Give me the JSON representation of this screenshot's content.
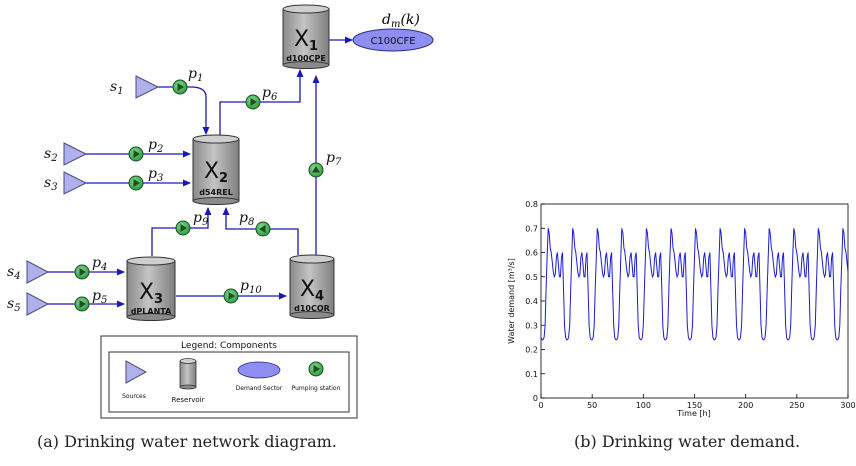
{
  "network": {
    "reservoirs": [
      {
        "id": "x1",
        "name": "X",
        "sub": "1",
        "code": "d100CPE"
      },
      {
        "id": "x2",
        "name": "X",
        "sub": "2",
        "code": "d54REL"
      },
      {
        "id": "x3",
        "name": "X",
        "sub": "3",
        "code": "dPLANTA"
      },
      {
        "id": "x4",
        "name": "X",
        "sub": "4",
        "code": "d10COR"
      }
    ],
    "sources": [
      {
        "id": "s1",
        "name": "s",
        "sub": "1"
      },
      {
        "id": "s2",
        "name": "s",
        "sub": "2"
      },
      {
        "id": "s3",
        "name": "s",
        "sub": "3"
      },
      {
        "id": "s4",
        "name": "s",
        "sub": "4"
      },
      {
        "id": "s5",
        "name": "s",
        "sub": "5"
      }
    ],
    "pumps": [
      {
        "id": "p1",
        "name": "p",
        "sub": "1"
      },
      {
        "id": "p2",
        "name": "p",
        "sub": "2"
      },
      {
        "id": "p3",
        "name": "p",
        "sub": "3"
      },
      {
        "id": "p4",
        "name": "p",
        "sub": "4"
      },
      {
        "id": "p5",
        "name": "p",
        "sub": "5"
      },
      {
        "id": "p6",
        "name": "p",
        "sub": "6"
      },
      {
        "id": "p7",
        "name": "p",
        "sub": "7"
      },
      {
        "id": "p8",
        "name": "p",
        "sub": "8"
      },
      {
        "id": "p9",
        "name": "p",
        "sub": "9"
      },
      {
        "id": "p10",
        "name": "p",
        "sub": "10"
      }
    ],
    "demand": {
      "label": "C100CFE",
      "annotation_main": "d",
      "annotation_sub": "m",
      "annotation_arg": "(k)"
    },
    "legend": {
      "title": "Legend: Components",
      "items": [
        "Sources",
        "Reservoir",
        "Demand Sector",
        "Pumping station"
      ]
    },
    "colors": {
      "pipe": "#1a1ab4",
      "source": "#b0b0ec",
      "pump": "#3aa64a",
      "demand": "#8e8ef0",
      "tank": "#a6a6a6"
    }
  },
  "chart_data": {
    "type": "line",
    "xlabel": "Time [h]",
    "ylabel": "Water demand [m³/s]",
    "xlim": [
      0,
      300
    ],
    "ylim": [
      0,
      0.8
    ],
    "xticks": [
      "0",
      "50",
      "100",
      "150",
      "200",
      "250",
      "300"
    ],
    "yticks": [
      "0",
      "0.1",
      "0.2",
      "0.3",
      "0.4",
      "0.5",
      "0.6",
      "0.7",
      "0.8"
    ],
    "grid": false,
    "period_h": 24,
    "series": [
      {
        "color": "#1c1cd2",
        "x": [
          0,
          1,
          2,
          3,
          4,
          5,
          6,
          7,
          8,
          9,
          10,
          11,
          12,
          13,
          14,
          15,
          16,
          17,
          18,
          19,
          20,
          21,
          22,
          23
        ],
        "values": [
          0.25,
          0.24,
          0.24,
          0.25,
          0.3,
          0.45,
          0.58,
          0.7,
          0.68,
          0.62,
          0.6,
          0.56,
          0.52,
          0.5,
          0.51,
          0.58,
          0.6,
          0.55,
          0.5,
          0.5,
          0.58,
          0.6,
          0.45,
          0.3
        ]
      }
    ]
  },
  "captions": {
    "a": "(a) Drinking water network diagram.",
    "b": "(b) Drinking water demand."
  }
}
